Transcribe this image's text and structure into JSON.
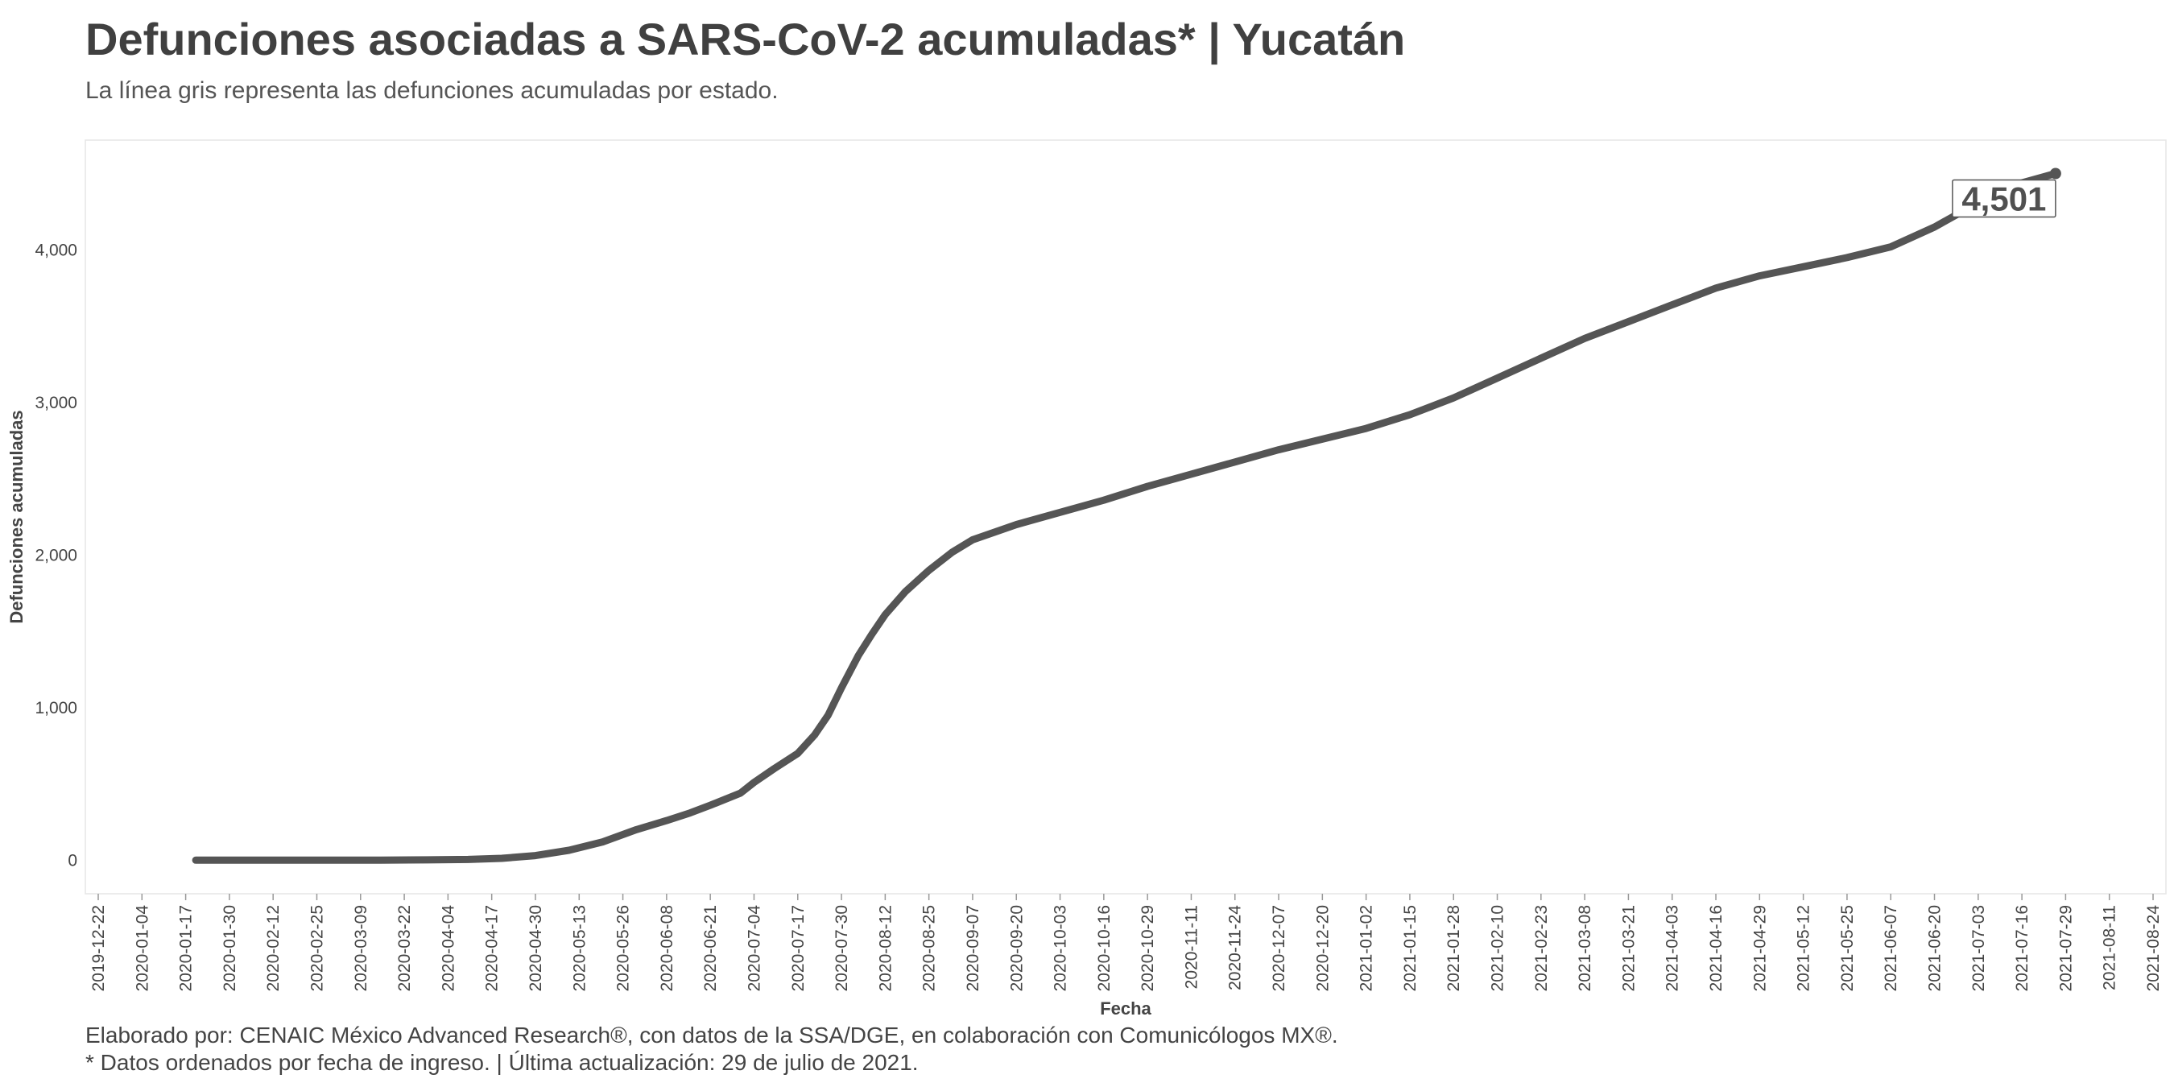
{
  "header": {
    "title": "Defunciones asociadas a SARS-CoV-2 acumuladas* | Yucatán",
    "subtitle": "La línea gris representa las defunciones acumuladas por estado."
  },
  "footer": {
    "credits": "Elaborado por: CENAIC México Advanced Research®, con datos de la SSA/DGE, en colaboración con Comunicólogos MX®.",
    "note": "* Datos ordenados por fecha de ingreso. | Última actualización: 29 de julio de 2021."
  },
  "chart_data": {
    "type": "line",
    "title": "Defunciones asociadas a SARS-CoV-2 acumuladas* | Yucatán",
    "subtitle": "La línea gris representa las defunciones acumuladas por estado.",
    "xlabel": "Fecha",
    "ylabel": "Defunciones acumuladas",
    "xlim": [
      "2019-12-22",
      "2021-08-24"
    ],
    "ylim": [
      -220,
      4720
    ],
    "x_ticks": [
      "2019-12-22",
      "2020-01-04",
      "2020-01-17",
      "2020-01-30",
      "2020-02-12",
      "2020-02-25",
      "2020-03-09",
      "2020-03-22",
      "2020-04-04",
      "2020-04-17",
      "2020-04-30",
      "2020-05-13",
      "2020-05-26",
      "2020-06-08",
      "2020-06-21",
      "2020-07-04",
      "2020-07-17",
      "2020-07-30",
      "2020-08-12",
      "2020-08-25",
      "2020-09-07",
      "2020-09-20",
      "2020-10-03",
      "2020-10-16",
      "2020-10-29",
      "2020-11-11",
      "2020-11-24",
      "2020-12-07",
      "2020-12-20",
      "2021-01-02",
      "2021-01-15",
      "2021-01-28",
      "2021-02-10",
      "2021-02-23",
      "2021-03-08",
      "2021-03-21",
      "2021-04-03",
      "2021-04-16",
      "2021-04-29",
      "2021-05-12",
      "2021-05-25",
      "2021-06-07",
      "2021-06-20",
      "2021-07-03",
      "2021-07-16",
      "2021-07-29",
      "2021-08-11",
      "2021-08-24"
    ],
    "y_ticks": [
      0,
      1000,
      2000,
      3000,
      4000
    ],
    "y_tick_labels": [
      "0",
      "1,000",
      "2,000",
      "3,000",
      "4,000"
    ],
    "grid": false,
    "line_color": "#555555",
    "series": [
      {
        "x": [
          "2020-01-20",
          "2020-02-15",
          "2020-03-15",
          "2020-03-29",
          "2020-04-10",
          "2020-04-20",
          "2020-04-30",
          "2020-05-10",
          "2020-05-20",
          "2020-05-30",
          "2020-06-08",
          "2020-06-15",
          "2020-06-21",
          "2020-06-30",
          "2020-07-04",
          "2020-07-10",
          "2020-07-17",
          "2020-07-22",
          "2020-07-26",
          "2020-07-30",
          "2020-08-04",
          "2020-08-08",
          "2020-08-12",
          "2020-08-18",
          "2020-08-25",
          "2020-09-01",
          "2020-09-07",
          "2020-09-20",
          "2020-10-03",
          "2020-10-16",
          "2020-10-29",
          "2020-11-11",
          "2020-11-24",
          "2020-12-07",
          "2020-12-20",
          "2021-01-02",
          "2021-01-15",
          "2021-01-28",
          "2021-02-10",
          "2021-02-23",
          "2021-03-08",
          "2021-03-21",
          "2021-04-03",
          "2021-04-16",
          "2021-04-29",
          "2021-05-12",
          "2021-05-25",
          "2021-06-07",
          "2021-06-20",
          "2021-07-03",
          "2021-07-16",
          "2021-07-26"
        ],
        "y": [
          0,
          0,
          0,
          2,
          5,
          12,
          30,
          65,
          120,
          200,
          260,
          310,
          360,
          440,
          510,
          600,
          700,
          820,
          950,
          1130,
          1340,
          1480,
          1610,
          1760,
          1900,
          2020,
          2100,
          2200,
          2280,
          2360,
          2450,
          2530,
          2610,
          2690,
          2760,
          2830,
          2920,
          3030,
          3160,
          3290,
          3420,
          3530,
          3640,
          3750,
          3830,
          3890,
          3950,
          4020,
          4150,
          4310,
          4440,
          4501
        ]
      }
    ],
    "annotation": {
      "x": "2021-07-26",
      "y": 4501,
      "label": "4,501"
    }
  }
}
